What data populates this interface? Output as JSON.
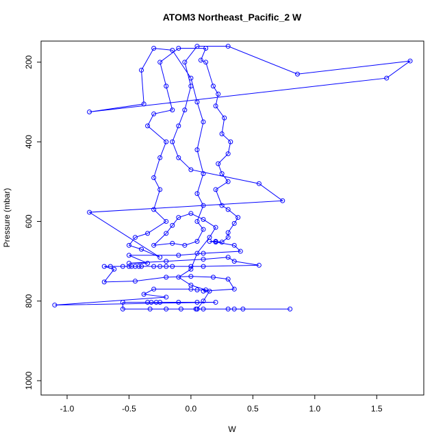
{
  "chart_data": {
    "type": "line-points",
    "title": "ATOM3 Northeast_Pacific_2 W",
    "x_label": "W",
    "y_label": "Pressure (mbar)",
    "color": "#0000ff",
    "xlim": [
      -1.21,
      1.88
    ],
    "ylim": [
      1036,
      147
    ],
    "xticks": [
      {
        "value": -1.0,
        "label": "-1.0"
      },
      -0.5,
      {
        "value": 0.0,
        "label": "0.0"
      },
      0.5,
      {
        "value": 1.0,
        "label": "1.0"
      },
      1.5
    ],
    "yticks": [
      200,
      400,
      600,
      800,
      1000
    ],
    "x": [
      0.8,
      0.42,
      0.35,
      0.3,
      0.1,
      0.05,
      0.04,
      -0.08,
      -0.2,
      -0.33,
      -0.55,
      -0.55,
      -0.35,
      -0.32,
      -0.28,
      -0.25,
      -0.1,
      0.05,
      0.2,
      -1.1,
      -0.2,
      -0.38,
      -0.3,
      0.0,
      0.05,
      0.12,
      0.1,
      0.35,
      0.3,
      0.18,
      0.0,
      -0.2,
      -0.45,
      -0.7,
      -0.62,
      -0.7,
      -0.65,
      -0.55,
      -0.5,
      -0.48,
      -0.45,
      -0.42,
      -0.4,
      -0.3,
      -0.25,
      -0.2,
      -0.15,
      0.0,
      0.1,
      0.55,
      0.35,
      0.3,
      0.1,
      -0.2,
      -0.5,
      -0.35,
      -0.5,
      -0.1,
      0.1,
      0.4,
      0.35,
      0.2,
      0.15,
      0.2,
      0.25,
      0.3,
      0.3,
      0.35,
      0.38,
      0.3,
      0.25,
      0.2,
      0.3,
      0.25,
      0.22,
      0.3,
      0.32,
      0.25,
      0.27,
      0.2,
      0.22,
      0.18,
      0.12,
      0.08,
      0.12,
      -0.1,
      -0.25,
      -0.2,
      -0.15,
      -0.3,
      -0.35,
      -0.2,
      -0.25,
      -0.3,
      -0.25,
      -0.3,
      -0.2,
      -0.35,
      -0.45,
      -0.5,
      -0.4,
      -0.25,
      -0.82,
      0.74,
      0.55,
      0.0,
      -0.1,
      -0.15,
      -0.1,
      -0.05,
      0.0,
      -0.05,
      0.05,
      0.3,
      0.86,
      1.77,
      1.58,
      -0.82,
      -0.38,
      -0.4,
      -0.3,
      -0.15,
      0.0,
      0.05,
      0.1,
      0.05,
      0.1,
      0.05,
      0.1,
      0.05,
      0.1,
      0.05,
      -0.05,
      -0.15,
      -0.3,
      -0.2,
      -0.15,
      -0.1,
      0.0,
      0.1,
      0.2,
      0.15,
      0.05,
      0.0,
      -0.1,
      0.0,
      0.15,
      0.1,
      0.05
    ],
    "values": [
      820,
      820,
      820,
      820,
      820,
      820,
      820,
      820,
      820,
      820,
      820,
      803,
      803,
      803,
      803,
      803,
      803,
      803,
      803,
      810,
      790,
      783,
      770,
      770,
      772,
      772,
      775,
      770,
      745,
      740,
      738,
      740,
      750,
      752,
      720,
      713,
      713,
      713,
      713,
      713,
      713,
      713,
      713,
      713,
      713,
      713,
      713,
      713,
      713,
      710,
      700,
      690,
      695,
      700,
      705,
      705,
      685,
      685,
      680,
      675,
      660,
      652,
      650,
      650,
      652,
      640,
      628,
      605,
      590,
      570,
      560,
      520,
      500,
      480,
      455,
      430,
      400,
      380,
      340,
      310,
      280,
      260,
      200,
      195,
      165,
      165,
      200,
      260,
      320,
      330,
      360,
      400,
      440,
      490,
      520,
      570,
      600,
      630,
      640,
      660,
      670,
      690,
      577,
      548,
      505,
      470,
      440,
      400,
      360,
      320,
      260,
      200,
      160,
      160,
      230,
      197,
      240,
      325,
      305,
      220,
      165,
      170,
      240,
      300,
      350,
      420,
      480,
      530,
      560,
      600,
      620,
      650,
      660,
      655,
      660,
      630,
      610,
      590,
      580,
      595,
      615,
      640,
      680,
      720,
      740,
      760,
      775,
      800,
      820
    ]
  }
}
